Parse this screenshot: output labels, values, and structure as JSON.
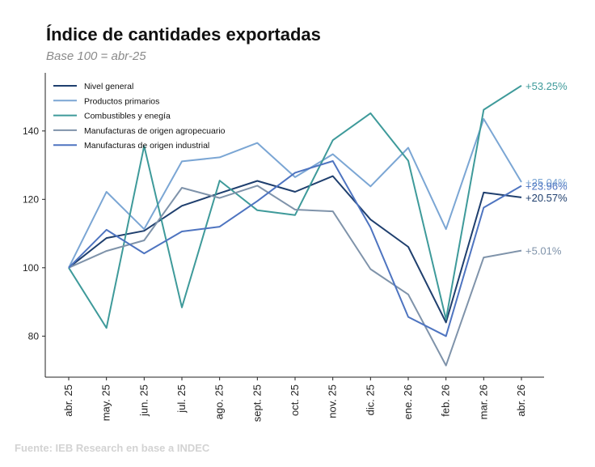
{
  "title": "Índice de cantidades exportadas",
  "subtitle": "Base 100 = abr-25",
  "source": "Fuente: IEB Research en base a INDEC",
  "chart_data": {
    "type": "line",
    "title": "Índice de cantidades exportadas",
    "subtitle": "Base 100 = abr-25",
    "xlabel": "",
    "ylabel": "",
    "categories": [
      "abr. 25",
      "may. 25",
      "jun. 25",
      "jul. 25",
      "ago. 25",
      "sept. 25",
      "oct. 25",
      "nov. 25",
      "dic. 25",
      "ene. 26",
      "feb. 26",
      "mar. 26",
      "abr. 26"
    ],
    "ylim": [
      68,
      157
    ],
    "yticks": [
      80,
      100,
      120,
      140
    ],
    "grid": false,
    "legend_position": "top-left",
    "series": [
      {
        "name": "Nivel general",
        "color": "#1f3f6e",
        "end_label": "+20.57%",
        "values": [
          100,
          108.7,
          110.8,
          118.1,
          121.8,
          125.4,
          122.2,
          126.8,
          114.1,
          106.1,
          84.0,
          122.0,
          120.57
        ]
      },
      {
        "name": "Productos primarios",
        "color": "#7ba6d4",
        "end_label": "+25.04%",
        "values": [
          100,
          122.2,
          111.3,
          131.1,
          132.3,
          136.5,
          126.5,
          133.2,
          123.8,
          135.1,
          111.3,
          143.5,
          125.04
        ]
      },
      {
        "name": "Combustibles y enegía",
        "color": "#3e9a9a",
        "end_label": "+53.25%",
        "values": [
          100,
          82.4,
          135.6,
          88.4,
          125.5,
          116.8,
          115.4,
          137.3,
          145.2,
          131.3,
          84.9,
          146.2,
          153.25
        ]
      },
      {
        "name": "Manufacturas de origen agropecuario",
        "color": "#7f93aa",
        "end_label": "+5.01%",
        "values": [
          100,
          104.9,
          108.0,
          123.4,
          120.4,
          124.0,
          117.0,
          116.5,
          99.6,
          92.2,
          71.4,
          103.0,
          105.01
        ]
      },
      {
        "name": "Manufacturas de origen industrial",
        "color": "#4e74c0",
        "end_label": "+23.96%",
        "values": [
          100,
          111.1,
          104.2,
          110.6,
          112.0,
          119.5,
          127.8,
          131.2,
          111.8,
          85.6,
          80.0,
          117.6,
          123.96
        ]
      }
    ]
  }
}
